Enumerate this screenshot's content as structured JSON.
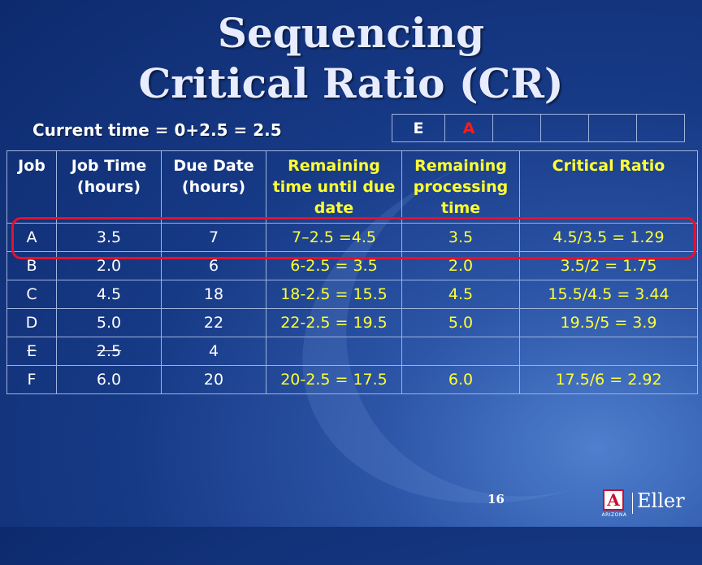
{
  "slide": {
    "title_line1": "Sequencing",
    "title_line2": "Critical Ratio (CR)",
    "current_time": "Current time = 0+2.5 = 2.5",
    "page_number": "16"
  },
  "sequence": [
    "E",
    "A",
    "",
    "",
    "",
    "",
    ""
  ],
  "sequence_colors": {
    "E": "#ffffff",
    "A": "#ff1a1a"
  },
  "table": {
    "headers": [
      "Job",
      "Job Time (hours)",
      "Due Date (hours)",
      "Remaining time until due date",
      "Remaining processing time",
      "Critical Ratio"
    ],
    "rows": [
      {
        "job": "A",
        "job_time": "3.5",
        "due_date": "7",
        "remaining_due": "7–2.5 =4.5",
        "remaining_proc": "3.5",
        "cr": "4.5/3.5 = 1.29"
      },
      {
        "job": "B",
        "job_time": "2.0",
        "due_date": "6",
        "remaining_due": "6-2.5 = 3.5",
        "remaining_proc": "2.0",
        "cr": "3.5/2 = 1.75"
      },
      {
        "job": "C",
        "job_time": "4.5",
        "due_date": "18",
        "remaining_due": "18-2.5 = 15.5",
        "remaining_proc": "4.5",
        "cr": "15.5/4.5 = 3.44"
      },
      {
        "job": "D",
        "job_time": "5.0",
        "due_date": "22",
        "remaining_due": "22-2.5 = 19.5",
        "remaining_proc": "5.0",
        "cr": "19.5/5 = 3.9"
      },
      {
        "job": "E",
        "job_time": "2.5",
        "due_date": "4",
        "remaining_due": "",
        "remaining_proc": "",
        "cr": ""
      },
      {
        "job": "F",
        "job_time": "6.0",
        "due_date": "20",
        "remaining_due": "20-2.5 = 17.5",
        "remaining_proc": "6.0",
        "cr": "17.5/6 = 2.92"
      }
    ]
  },
  "logo": {
    "mark": "A",
    "university": "ARIZONA",
    "school": "Eller"
  },
  "colors": {
    "highlight": "#e8102c",
    "yellow_text": "#ffff33"
  }
}
